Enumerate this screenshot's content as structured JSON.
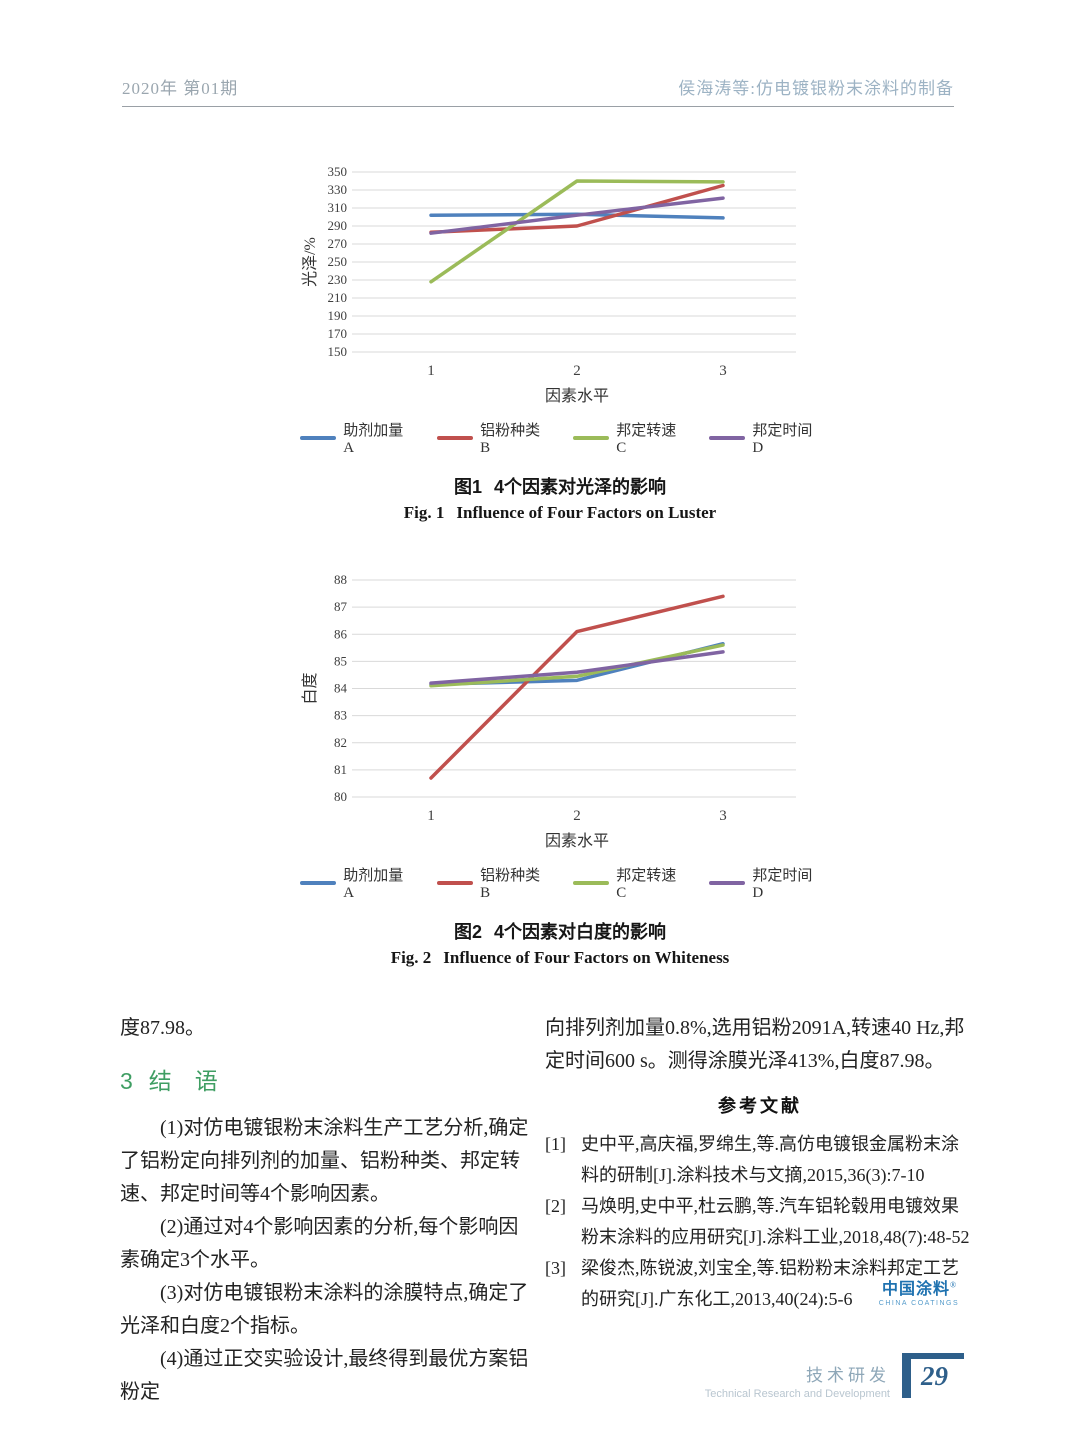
{
  "header": {
    "left": "2020年 第01期",
    "right": "侯海涛等:仿电镀银粉末涂料的制备"
  },
  "figures": [
    {
      "caption_label_cn": "图1",
      "caption_text_cn": "4个因素对光泽的影响",
      "caption_label_en": "Fig. 1",
      "caption_text_en": "Influence of Four Factors on Luster"
    },
    {
      "caption_label_cn": "图2",
      "caption_text_cn": "4个因素对白度的影响",
      "caption_label_en": "Fig. 2",
      "caption_text_en": "Influence of Four Factors on Whiteness"
    }
  ],
  "chart_data": [
    {
      "svg_id": "chart1-svg",
      "legend_id": "chart1-legend",
      "type": "line",
      "title": "图1 4个因素对光泽的影响",
      "xlabel": "因素水平",
      "ylabel": "光泽/%",
      "categories": [
        "1",
        "2",
        "3"
      ],
      "ymin": 150,
      "ymax": 350,
      "ystep": 20,
      "ylim": [
        150,
        350
      ],
      "grid": true,
      "legend_position": "bottom",
      "series": [
        {
          "name": "助剂加量A",
          "color": "#4F81BD",
          "values": [
            302,
            303,
            299
          ]
        },
        {
          "name": "铝粉种类B",
          "color": "#C0504D",
          "values": [
            283,
            290,
            335
          ]
        },
        {
          "name": "邦定转速C",
          "color": "#9BBB59",
          "values": [
            228,
            340,
            339
          ]
        },
        {
          "name": "邦定时间D",
          "color": "#8064A2",
          "values": [
            282,
            302,
            321
          ]
        }
      ]
    },
    {
      "svg_id": "chart2-svg",
      "legend_id": "chart2-legend",
      "type": "line",
      "title": "图2 4个因素对白度的影响",
      "xlabel": "因素水平",
      "ylabel": "白度",
      "categories": [
        "1",
        "2",
        "3"
      ],
      "ymin": 80,
      "ymax": 88,
      "ystep": 1,
      "ylim": [
        80,
        88
      ],
      "grid": true,
      "legend_position": "bottom",
      "series": [
        {
          "name": "助剂加量A",
          "color": "#4F81BD",
          "values": [
            84.15,
            84.3,
            85.65
          ]
        },
        {
          "name": "铝粉种类B",
          "color": "#C0504D",
          "values": [
            80.7,
            86.1,
            87.4
          ]
        },
        {
          "name": "邦定转速C",
          "color": "#9BBB59",
          "values": [
            84.1,
            84.45,
            85.6
          ]
        },
        {
          "name": "邦定时间D",
          "color": "#8064A2",
          "values": [
            84.2,
            84.6,
            85.35
          ]
        }
      ]
    }
  ],
  "body": {
    "left_column": {
      "carryover": "度87.98。",
      "heading_number": "3",
      "heading_title": "结　语",
      "paragraphs": [
        "(1)对仿电镀银粉末涂料生产工艺分析,确定了铝粉定向排列剂的加量、铝粉种类、邦定转速、邦定时间等4个影响因素。",
        "(2)通过对4个影响因素的分析,每个影响因素确定3个水平。",
        "(3)对仿电镀银粉末涂料的涂膜特点,确定了光泽和白度2个指标。",
        "(4)通过正交实验设计,最终得到最优方案铝粉定"
      ]
    },
    "right_column": {
      "paragraph": "向排列剂加量0.8%,选用铝粉2091A,转速40 Hz,邦定时间600 s。测得涂膜光泽413%,白度87.98。",
      "references_title": "参考文献",
      "references": [
        {
          "marker": "[1]",
          "text": "史中平,高庆福,罗绵生,等.高仿电镀银金属粉末涂料的研制[J].涂料技术与文摘,2015,36(3):7-10"
        },
        {
          "marker": "[2]",
          "text": "马焕明,史中平,杜云鹏,等.汽车铝轮毂用电镀效果粉末涂料的应用研究[J].涂料工业,2018,48(7):48-52"
        },
        {
          "marker": "[3]",
          "text": "梁俊杰,陈锐波,刘宝全,等.铝粉粉末涂料邦定工艺的研究[J].广东化工,2013,40(24):5-6"
        }
      ]
    }
  },
  "logo": {
    "cn": "中国涂料",
    "mark": "®",
    "en": "CHINA COATINGS"
  },
  "footer": {
    "section_cn": "技术研发",
    "section_en": "Technical Research and Development",
    "page_number": "29"
  },
  "colors": {
    "heading_green": "#3f9e63",
    "logo_blue": "#1f72b0",
    "footer_bar_blue": "#2e5f8a",
    "series_blue": "#4F81BD",
    "series_red": "#C0504D",
    "series_green": "#9BBB59",
    "series_purple": "#8064A2"
  }
}
